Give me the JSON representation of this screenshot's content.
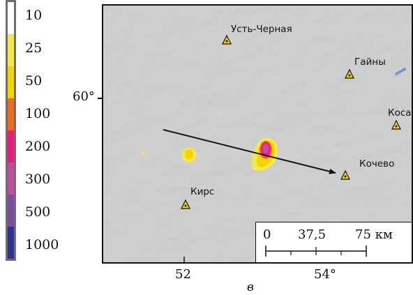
{
  "legend": {
    "colors": [
      "#ffffff",
      "#f5e84a",
      "#f6d400",
      "#f26a21",
      "#ec1c7d",
      "#bf4f9b",
      "#7a4ba0",
      "#2e3192"
    ],
    "labels": [
      "10",
      "25",
      "50",
      "100",
      "200",
      "300",
      "500",
      "1000"
    ]
  },
  "map": {
    "background_color": "#d3d3d3",
    "places": [
      {
        "name": "Усть-Черная"
      },
      {
        "name": "Гайны"
      },
      {
        "name": "Коса"
      },
      {
        "name": "Кочево"
      },
      {
        "name": "Кирс"
      }
    ],
    "scale_bar": {
      "labels": [
        "0",
        "37,5",
        "75 км"
      ]
    },
    "axes": {
      "lat_label": "60°",
      "lon_labels": [
        "52",
        "54°"
      ]
    },
    "arrow_icon": "direction-arrow-icon",
    "settlement_icon": "triangle-dot-icon"
  },
  "panel_letter": "в"
}
